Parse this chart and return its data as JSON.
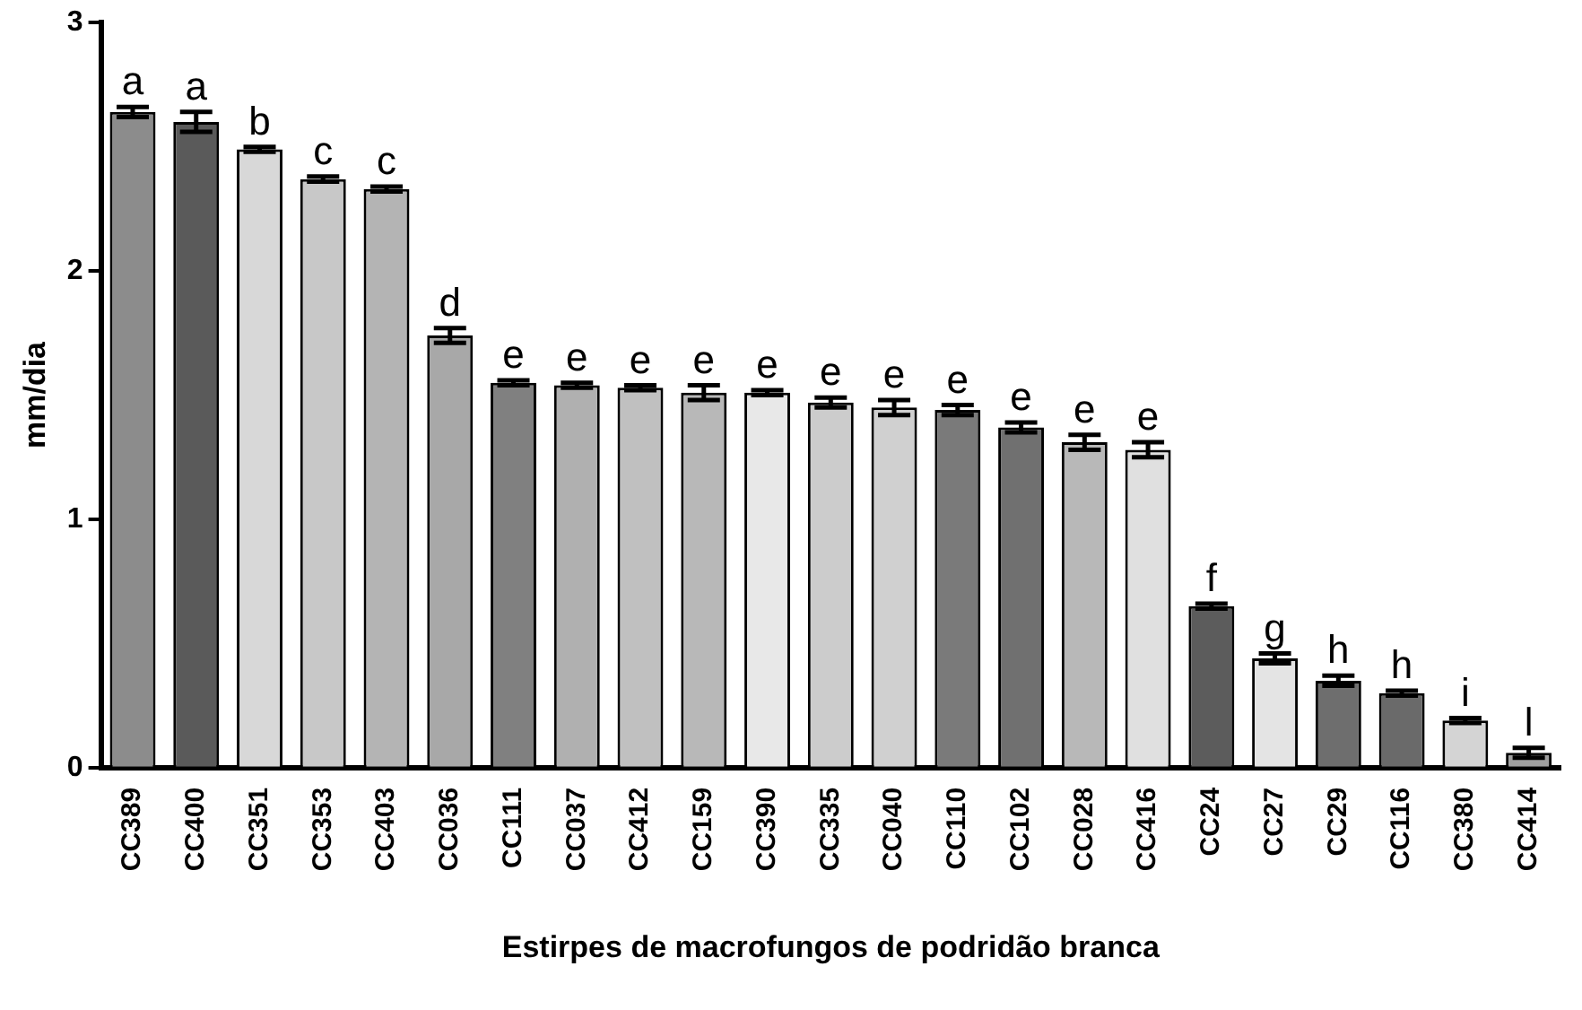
{
  "chart_data": {
    "type": "bar",
    "xlabel": "Estirpes de macrofungos de podridão branca",
    "ylabel": "mm/dia",
    "categories": [
      "CC389",
      "CC400",
      "CC351",
      "CC353",
      "CC403",
      "CC036",
      "CC111",
      "CC037",
      "CC412",
      "CC159",
      "CC390",
      "CC335",
      "CC040",
      "CC110",
      "CC102",
      "CC028",
      "CC416",
      "CC24",
      "CC27",
      "CC29",
      "CC116",
      "CC380",
      "CC414"
    ],
    "values": [
      2.64,
      2.6,
      2.49,
      2.37,
      2.33,
      1.74,
      1.55,
      1.54,
      1.53,
      1.51,
      1.51,
      1.47,
      1.45,
      1.44,
      1.37,
      1.31,
      1.28,
      0.65,
      0.44,
      0.35,
      0.3,
      0.19,
      0.06
    ],
    "errors": [
      0.02,
      0.04,
      0.01,
      0.01,
      0.01,
      0.03,
      0.01,
      0.01,
      0.01,
      0.03,
      0.01,
      0.02,
      0.03,
      0.02,
      0.02,
      0.03,
      0.03,
      0.01,
      0.02,
      0.02,
      0.01,
      0.01,
      0.02
    ],
    "colors": [
      "#8c8c8c",
      "#5a5a5a",
      "#d8d8d8",
      "#c8c8c8",
      "#b4b4b4",
      "#a8a8a8",
      "#808080",
      "#b0b0b0",
      "#c0c0c0",
      "#b8b8b8",
      "#e8e8e8",
      "#cccccc",
      "#d0d0d0",
      "#7a7a7a",
      "#707070",
      "#b8b8b8",
      "#e0e0e0",
      "#5c5c5c",
      "#e4e4e4",
      "#6e6e6e",
      "#6a6a6a",
      "#d4d4d4",
      "#a0a0a0"
    ],
    "ylim": [
      0,
      3
    ],
    "yticks": [
      0,
      1,
      2,
      3
    ],
    "grid": false,
    "legend": false,
    "annotations": [
      {
        "text": "a",
        "x": "CC389",
        "y": 2.64
      },
      {
        "text": "a",
        "x": "CC400",
        "y": 2.6
      },
      {
        "text": "b",
        "x": "CC351",
        "y": 2.49
      },
      {
        "text": "c",
        "x": "CC353",
        "y": 2.37
      },
      {
        "text": "c",
        "x": "CC403",
        "y": 2.33
      },
      {
        "text": "d",
        "x": "CC036",
        "y": 1.74
      },
      {
        "text": "e",
        "x": "CC111",
        "y": 1.55
      },
      {
        "text": "e",
        "x": "CC037",
        "y": 1.54
      },
      {
        "text": "e",
        "x": "CC412",
        "y": 1.53
      },
      {
        "text": "e",
        "x": "CC159",
        "y": 1.51
      },
      {
        "text": "e",
        "x": "CC390",
        "y": 1.51
      },
      {
        "text": "e",
        "x": "CC335",
        "y": 1.47
      },
      {
        "text": "e",
        "x": "CC040",
        "y": 1.45
      },
      {
        "text": "e",
        "x": "CC110",
        "y": 1.44
      },
      {
        "text": "e",
        "x": "CC102",
        "y": 1.37
      },
      {
        "text": "e",
        "x": "CC028",
        "y": 1.31
      },
      {
        "text": "e",
        "x": "CC416",
        "y": 1.28
      },
      {
        "text": "f",
        "x": "CC24",
        "y": 0.65
      },
      {
        "text": "g",
        "x": "CC27",
        "y": 0.44
      },
      {
        "text": "h",
        "x": "CC29",
        "y": 0.35
      },
      {
        "text": "h",
        "x": "CC116",
        "y": 0.3
      },
      {
        "text": "i",
        "x": "CC380",
        "y": 0.19
      },
      {
        "text": "l",
        "x": "CC414",
        "y": 0.06
      }
    ]
  }
}
